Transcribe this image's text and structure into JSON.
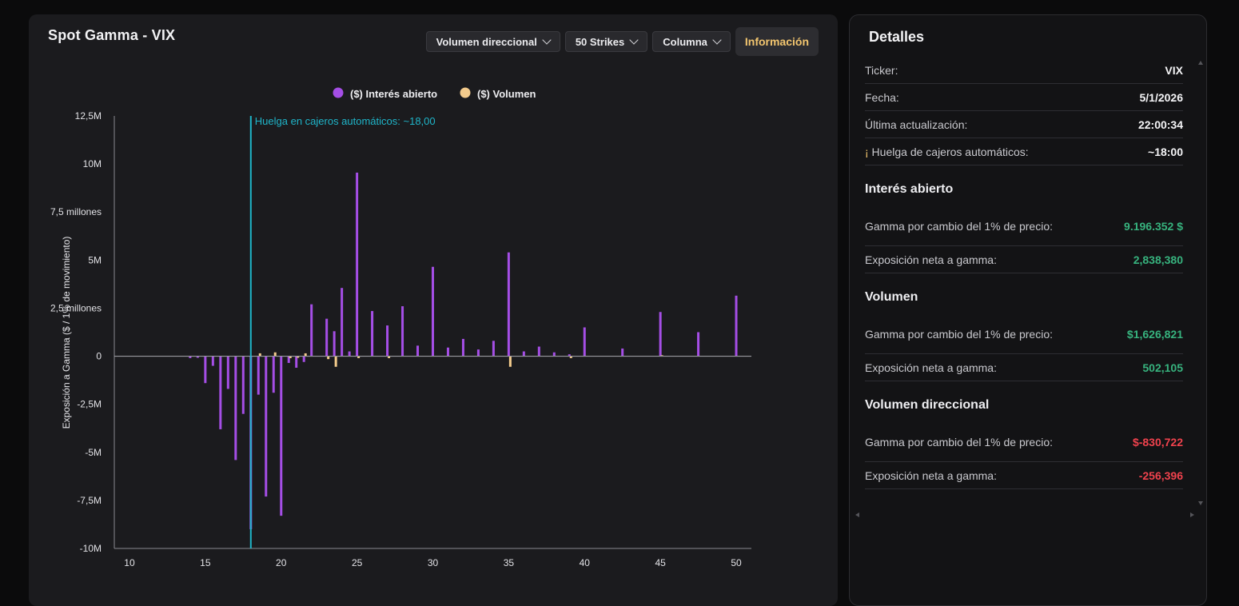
{
  "chart_panel": {
    "title": "Spot Gamma - VIX",
    "controls": {
      "mode_dropdown": "Volumen direccional",
      "strikes_dropdown": "50 Strikes",
      "type_dropdown": "Columna",
      "info_button": "Información"
    }
  },
  "details": {
    "title": "Detalles",
    "rows": [
      {
        "label": "Ticker:",
        "value": "VIX"
      },
      {
        "label": "Fecha:",
        "value": "5/1/2026"
      },
      {
        "label": "Última actualización:",
        "value": "22:00:34"
      },
      {
        "label_prefix": "¡",
        "label": " Huelga de cajeros automáticos:",
        "value": "~18:00"
      }
    ],
    "sections": [
      {
        "title": "Interés abierto",
        "gamma_label": "Gamma por cambio del 1% de precio:",
        "gamma_value": "9.196.352 $",
        "exposure_label": "Exposición neta a gamma:",
        "exposure_value": "2,838,380",
        "color": "#37b37e"
      },
      {
        "title": "Volumen",
        "gamma_label": "Gamma por cambio del 1% de precio:",
        "gamma_value": "$1,626,821",
        "exposure_label": "Exposición neta a gamma:",
        "exposure_value": "502,105",
        "color": "#37b37e"
      },
      {
        "title": "Volumen direccional",
        "gamma_label": "Gamma por cambio del 1% de precio:",
        "gamma_value": "$-830,722",
        "exposure_label": "Exposición neta a gamma:",
        "exposure_value": "-256,396",
        "color": "#f0424d"
      }
    ]
  },
  "chart_data": {
    "type": "bar",
    "ylabel": "Exposición a Gamma ($ / 1% de movimiento)",
    "xlabel": "",
    "xlim": [
      9,
      51
    ],
    "ylim": [
      -10000000,
      12500000
    ],
    "y_ticks": [
      {
        "v": 12500000,
        "label": "12,5M"
      },
      {
        "v": 10000000,
        "label": "10M"
      },
      {
        "v": 7500000,
        "label": "7,5 millones"
      },
      {
        "v": 5000000,
        "label": "5M"
      },
      {
        "v": 2500000,
        "label": "2,5 millones"
      },
      {
        "v": 0,
        "label": "0"
      },
      {
        "v": -2500000,
        "label": "-2,5M"
      },
      {
        "v": -5000000,
        "label": "-5M"
      },
      {
        "v": -7500000,
        "label": "-7,5M"
      },
      {
        "v": -10000000,
        "label": "-10M"
      }
    ],
    "x_ticks": [
      10,
      15,
      20,
      25,
      30,
      35,
      40,
      45,
      50
    ],
    "legend": [
      "($) Interés abierto",
      "($) Volumen"
    ],
    "legend_position": "top",
    "atm_line": {
      "x": 18,
      "label": "Huelga en cajeros automáticos: ~18,00",
      "color": "#1fb5c9"
    },
    "series": [
      {
        "name": "($) Interés abierto",
        "color": "#a54ee6",
        "points": [
          [
            14,
            -100000
          ],
          [
            14.5,
            -80000
          ],
          [
            15,
            -1400000
          ],
          [
            15.5,
            -500000
          ],
          [
            16,
            -3800000
          ],
          [
            16.5,
            -1700000
          ],
          [
            17,
            -5400000
          ],
          [
            17.5,
            -3000000
          ],
          [
            18,
            -9000000
          ],
          [
            18.5,
            -2000000
          ],
          [
            19,
            -7300000
          ],
          [
            19.5,
            -1900000
          ],
          [
            20,
            -8300000
          ],
          [
            20.5,
            -350000
          ],
          [
            21,
            -600000
          ],
          [
            21.5,
            -300000
          ],
          [
            22,
            2700000
          ],
          [
            23,
            1950000
          ],
          [
            23.5,
            1300000
          ],
          [
            24,
            3550000
          ],
          [
            24.5,
            250000
          ],
          [
            25,
            9550000
          ],
          [
            26,
            2350000
          ],
          [
            27,
            1600000
          ],
          [
            28,
            2600000
          ],
          [
            29,
            550000
          ],
          [
            30,
            4650000
          ],
          [
            31,
            450000
          ],
          [
            32,
            900000
          ],
          [
            33,
            350000
          ],
          [
            34,
            800000
          ],
          [
            35,
            5400000
          ],
          [
            36,
            250000
          ],
          [
            37,
            500000
          ],
          [
            38,
            200000
          ],
          [
            39,
            100000
          ],
          [
            40,
            1500000
          ],
          [
            42.5,
            400000
          ],
          [
            45,
            2300000
          ],
          [
            47.5,
            1250000
          ],
          [
            50,
            3150000
          ]
        ]
      },
      {
        "name": "($) Volumen",
        "color": "#f3cb8c",
        "points": [
          [
            18.5,
            150000
          ],
          [
            19.5,
            200000
          ],
          [
            20.5,
            -100000
          ],
          [
            21,
            -80000
          ],
          [
            21.5,
            150000
          ],
          [
            23,
            -150000
          ],
          [
            23.5,
            -550000
          ],
          [
            25,
            -100000
          ],
          [
            27,
            -100000
          ],
          [
            35,
            -550000
          ],
          [
            39,
            -100000
          ],
          [
            45,
            50000
          ]
        ]
      }
    ]
  }
}
